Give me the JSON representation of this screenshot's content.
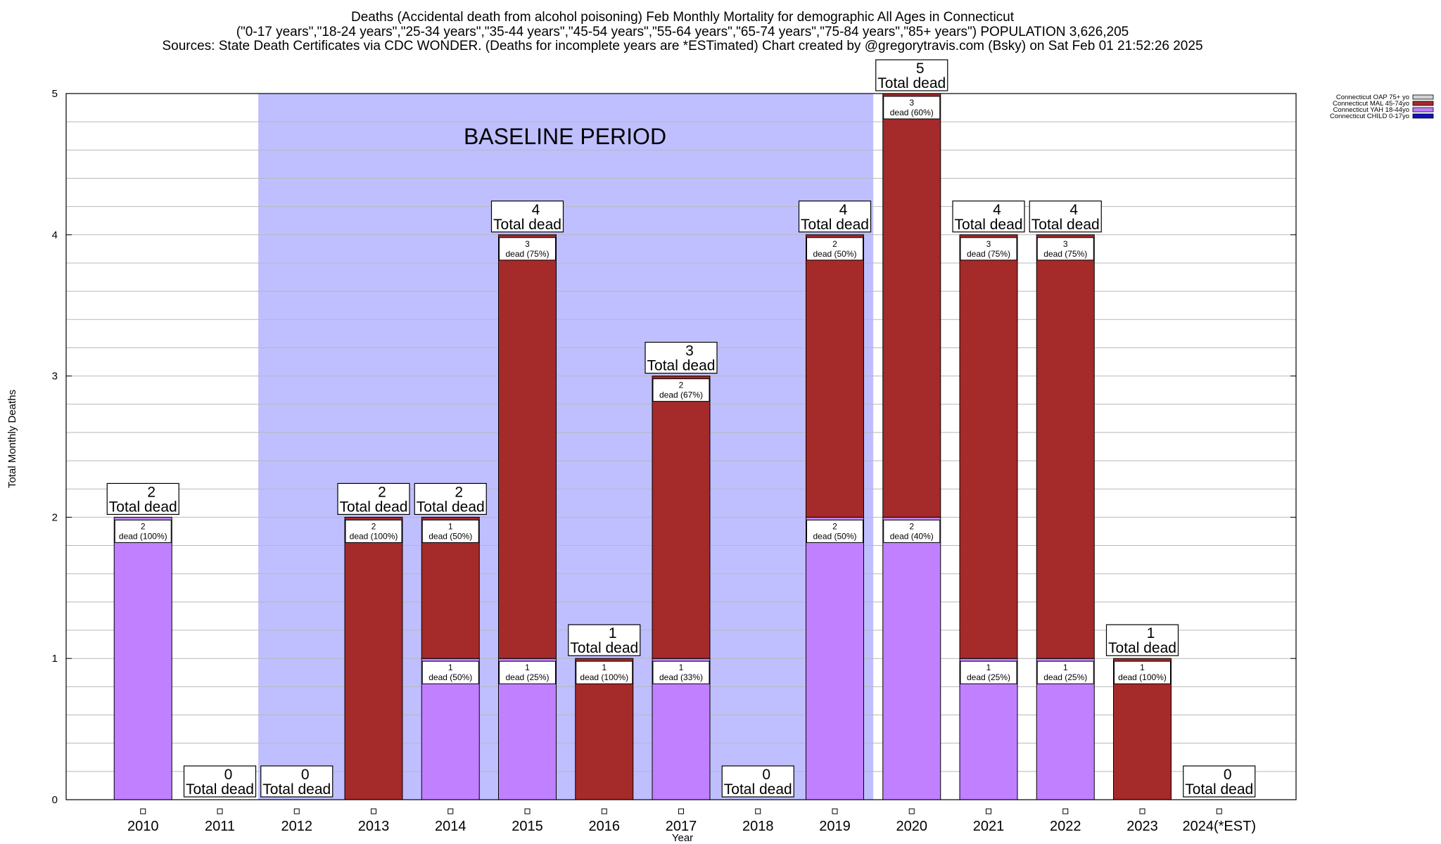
{
  "chart_data": {
    "type": "bar",
    "stacked": true,
    "title": [
      "Deaths (Accidental death from alcohol poisoning) Feb Monthly Mortality for demographic All Ages in Connecticut",
      "(\"0-17 years\",\"18-24 years\",\"25-34 years\",\"35-44 years\",\"45-54 years\",\"55-64 years\",\"65-74 years\",\"75-84 years\",\"85+ years\") POPULATION 3,626,205",
      "Sources: State Death Certificates via CDC WONDER. (Deaths for incomplete years are *ESTimated)              Chart created by @gregorytravis.com (Bsky) on Sat Feb 01 21:52:26 2025"
    ],
    "xlabel": "Year",
    "ylabel": "Total Monthly Deaths",
    "ylim": [
      0,
      5
    ],
    "yticks": [
      "0",
      "1",
      "2",
      "3",
      "4",
      "5"
    ],
    "grid": true,
    "categories": [
      "2010",
      "2011",
      "2012",
      "2013",
      "2014",
      "2015",
      "2016",
      "2017",
      "2018",
      "2019",
      "2020",
      "2021",
      "2022",
      "2023",
      "2024(*EST)"
    ],
    "series": [
      {
        "name": "Connecticut CHILD 0-17yo",
        "color": "#1010c8",
        "values": [
          0,
          0,
          0,
          0,
          0,
          0,
          0,
          0,
          0,
          0,
          0,
          0,
          0,
          0,
          0
        ]
      },
      {
        "name": "Connecticut YAH 18-44yo",
        "color": "#c080ff",
        "values": [
          2,
          0,
          0,
          0,
          1,
          1,
          0,
          1,
          0,
          2,
          2,
          1,
          1,
          0,
          0
        ]
      },
      {
        "name": "Connecticut MAL 45-74yo",
        "color": "#a52a2a",
        "values": [
          0,
          0,
          0,
          2,
          1,
          3,
          1,
          2,
          0,
          2,
          3,
          3,
          3,
          1,
          0
        ]
      },
      {
        "name": "Connecticut OAP 75+ yo",
        "color": "#d3d3d3",
        "values": [
          0,
          0,
          0,
          0,
          0,
          0,
          0,
          0,
          0,
          0,
          0,
          0,
          0,
          0,
          0
        ]
      }
    ],
    "legend_position": "top-right",
    "segment_text_suffix": "dead",
    "total_text": "Total dead",
    "annotation": "BASELINE PERIOD",
    "baseline_period": [
      "2012",
      "2019"
    ],
    "baseline_color": "#bfbfff"
  }
}
